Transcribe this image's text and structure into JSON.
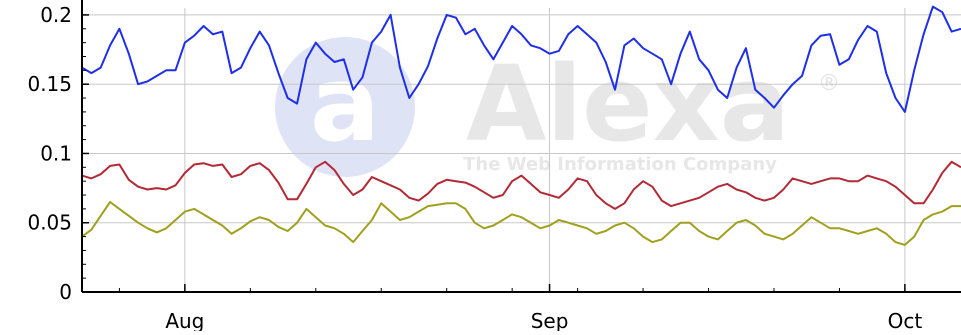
{
  "chart_data": {
    "type": "line",
    "title": "",
    "xlabel": "",
    "ylabel": "",
    "ylim": [
      0,
      0.205
    ],
    "yticks": [
      {
        "value": 0,
        "label": "0"
      },
      {
        "value": 0.05,
        "label": "0.05"
      },
      {
        "value": 0.1,
        "label": "0.1"
      },
      {
        "value": 0.15,
        "label": "0.15"
      },
      {
        "value": 0.2,
        "label": "0.2"
      }
    ],
    "month_labels": [
      {
        "label": "Aug",
        "at_index": 11
      },
      {
        "label": "Sep",
        "at_index": 50
      },
      {
        "label": "Oct",
        "at_index": 88
      }
    ],
    "grid": true,
    "watermark": {
      "brand": "Alexa",
      "tagline": "The Web Information Company",
      "mark": "a",
      "registered": "®"
    },
    "colors": {
      "blue": "#1f2fe8",
      "red": "#b22a35",
      "olive": "#a0a020",
      "axis": "#000000",
      "grid": "#c8c8c8"
    },
    "series": [
      {
        "color_key": "blue",
        "values": [
          0.162,
          0.158,
          0.162,
          0.178,
          0.19,
          0.172,
          0.15,
          0.152,
          0.156,
          0.16,
          0.16,
          0.18,
          0.185,
          0.192,
          0.186,
          0.188,
          0.158,
          0.162,
          0.176,
          0.188,
          0.178,
          0.158,
          0.14,
          0.136,
          0.168,
          0.18,
          0.172,
          0.166,
          0.168,
          0.146,
          0.155,
          0.18,
          0.188,
          0.2,
          0.162,
          0.14,
          0.15,
          0.163,
          0.183,
          0.2,
          0.198,
          0.186,
          0.19,
          0.178,
          0.168,
          0.18,
          0.192,
          0.186,
          0.178,
          0.176,
          0.172,
          0.174,
          0.186,
          0.192,
          0.186,
          0.18,
          0.166,
          0.146,
          0.178,
          0.183,
          0.176,
          0.172,
          0.168,
          0.15,
          0.172,
          0.188,
          0.168,
          0.16,
          0.146,
          0.14,
          0.162,
          0.176,
          0.146,
          0.14,
          0.133,
          0.142,
          0.15,
          0.156,
          0.178,
          0.185,
          0.186,
          0.164,
          0.168,
          0.182,
          0.192,
          0.188,
          0.158,
          0.14,
          0.13,
          0.16,
          0.186,
          0.206,
          0.202,
          0.188,
          0.19
        ]
      },
      {
        "color_key": "red",
        "values": [
          0.084,
          0.082,
          0.085,
          0.091,
          0.092,
          0.081,
          0.076,
          0.074,
          0.075,
          0.074,
          0.077,
          0.086,
          0.092,
          0.093,
          0.091,
          0.092,
          0.083,
          0.085,
          0.091,
          0.093,
          0.088,
          0.079,
          0.067,
          0.067,
          0.078,
          0.09,
          0.094,
          0.088,
          0.078,
          0.07,
          0.074,
          0.083,
          0.08,
          0.077,
          0.074,
          0.068,
          0.066,
          0.071,
          0.078,
          0.081,
          0.08,
          0.079,
          0.076,
          0.072,
          0.068,
          0.07,
          0.08,
          0.084,
          0.078,
          0.072,
          0.07,
          0.068,
          0.074,
          0.082,
          0.08,
          0.07,
          0.064,
          0.06,
          0.064,
          0.074,
          0.08,
          0.076,
          0.066,
          0.062,
          0.064,
          0.066,
          0.068,
          0.072,
          0.076,
          0.078,
          0.074,
          0.072,
          0.068,
          0.066,
          0.068,
          0.074,
          0.082,
          0.08,
          0.078,
          0.08,
          0.082,
          0.082,
          0.08,
          0.08,
          0.084,
          0.082,
          0.08,
          0.076,
          0.07,
          0.064,
          0.064,
          0.074,
          0.086,
          0.094,
          0.09
        ]
      },
      {
        "color_key": "olive",
        "values": [
          0.04,
          0.045,
          0.055,
          0.065,
          0.06,
          0.055,
          0.05,
          0.046,
          0.043,
          0.046,
          0.052,
          0.058,
          0.06,
          0.056,
          0.052,
          0.048,
          0.042,
          0.046,
          0.051,
          0.054,
          0.052,
          0.047,
          0.044,
          0.05,
          0.06,
          0.054,
          0.048,
          0.046,
          0.042,
          0.036,
          0.044,
          0.052,
          0.064,
          0.058,
          0.052,
          0.054,
          0.058,
          0.062,
          0.063,
          0.064,
          0.064,
          0.06,
          0.05,
          0.046,
          0.048,
          0.052,
          0.056,
          0.054,
          0.05,
          0.046,
          0.048,
          0.052,
          0.05,
          0.048,
          0.046,
          0.042,
          0.044,
          0.048,
          0.05,
          0.046,
          0.04,
          0.036,
          0.038,
          0.044,
          0.05,
          0.05,
          0.044,
          0.04,
          0.038,
          0.044,
          0.05,
          0.052,
          0.048,
          0.042,
          0.04,
          0.038,
          0.042,
          0.048,
          0.054,
          0.05,
          0.046,
          0.046,
          0.044,
          0.042,
          0.044,
          0.046,
          0.042,
          0.036,
          0.034,
          0.04,
          0.052,
          0.056,
          0.058,
          0.062,
          0.062
        ]
      }
    ]
  }
}
